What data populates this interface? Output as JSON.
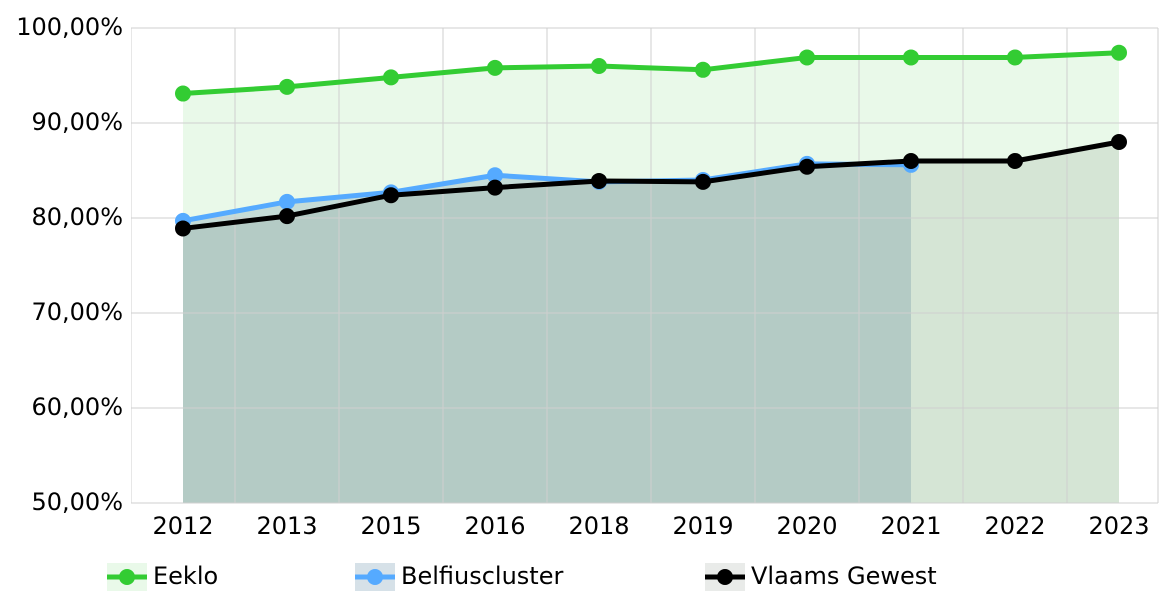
{
  "chart_data": {
    "type": "line",
    "categories": [
      "2012",
      "2013",
      "2015",
      "2016",
      "2018",
      "2019",
      "2020",
      "2021",
      "2022",
      "2023"
    ],
    "series": [
      {
        "name": "Eeklo",
        "color": "#33cc33",
        "fill": "rgba(51,204,51,0.11)",
        "values": [
          93.1,
          93.8,
          94.8,
          95.8,
          96.0,
          95.6,
          96.9,
          96.9,
          96.9,
          97.4
        ]
      },
      {
        "name": "Belfiuscluster",
        "color": "#55aaff",
        "fill": "rgba(70,120,150,0.22)",
        "values": [
          79.7,
          81.7,
          82.7,
          84.5,
          83.8,
          84.0,
          85.7,
          85.6,
          null,
          null
        ]
      },
      {
        "name": "Vlaams Gewest",
        "color": "#000000",
        "fill": "rgba(40,60,40,0.1)",
        "values": [
          78.9,
          80.2,
          82.4,
          83.2,
          83.9,
          83.8,
          85.4,
          86.0,
          86.0,
          88.0
        ]
      }
    ],
    "ylim": [
      50,
      100
    ],
    "yticks": [
      {
        "value": 50,
        "label": "50,00%"
      },
      {
        "value": 60,
        "label": "60,00%"
      },
      {
        "value": 70,
        "label": "70,00%"
      },
      {
        "value": 80,
        "label": "80,00%"
      },
      {
        "value": 90,
        "label": "90,00%"
      },
      {
        "value": 100,
        "label": "100,00%"
      }
    ],
    "grid": true,
    "legend": "bottom"
  }
}
